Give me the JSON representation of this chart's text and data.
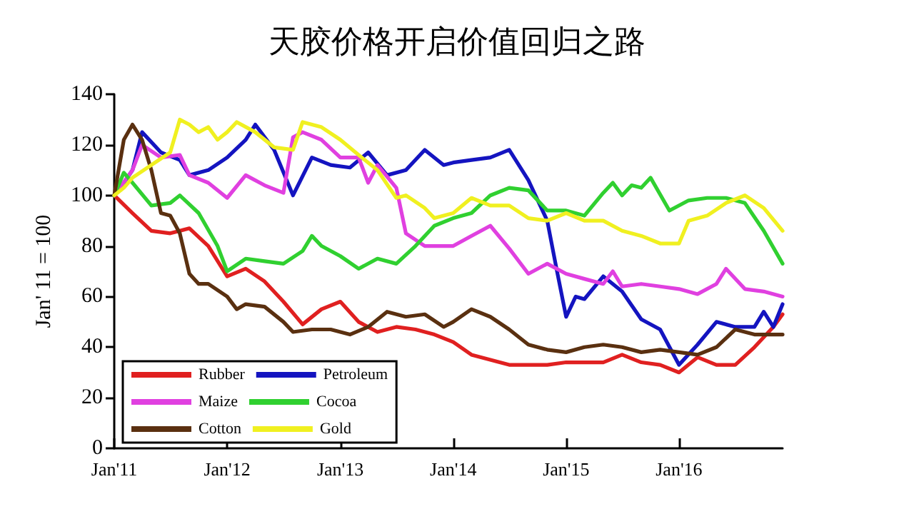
{
  "chart_data": {
    "type": "line",
    "title": "天胶价格开启价值回归之路",
    "ylabel": "Jan' 11 = 100",
    "xlim": [
      "2011-01",
      "2016-12"
    ],
    "xticks": [
      {
        "value": "2011-01",
        "label": "Jan'11"
      },
      {
        "value": "2012-01",
        "label": "Jan'12"
      },
      {
        "value": "2013-01",
        "label": "Jan'13"
      },
      {
        "value": "2014-01",
        "label": "Jan'14"
      },
      {
        "value": "2015-01",
        "label": "Jan'15"
      },
      {
        "value": "2016-01",
        "label": "Jan'16"
      }
    ],
    "ylim": [
      0,
      140
    ],
    "yticks": [
      0,
      20,
      40,
      60,
      80,
      100,
      120,
      140
    ],
    "grid": false,
    "legend": "bottom left",
    "marker": "none",
    "line_style": "solid",
    "series": [
      {
        "name": "Rubber",
        "color": "#e02020",
        "x": [
          "2011-01",
          "2011-03",
          "2011-05",
          "2011-07",
          "2011-09",
          "2011-11",
          "2012-01",
          "2012-03",
          "2012-05",
          "2012-07",
          "2012-09",
          "2012-11",
          "2013-01",
          "2013-03",
          "2013-05",
          "2013-07",
          "2013-09",
          "2013-11",
          "2014-01",
          "2014-03",
          "2014-05",
          "2014-07",
          "2014-09",
          "2014-11",
          "2015-01",
          "2015-03",
          "2015-05",
          "2015-07",
          "2015-09",
          "2015-11",
          "2016-01",
          "2016-03",
          "2016-05",
          "2016-07",
          "2016-09",
          "2016-11",
          "2016-12"
        ],
        "values": [
          100,
          93,
          86,
          85,
          87,
          80,
          68,
          71,
          66,
          58,
          49,
          55,
          58,
          50,
          46,
          48,
          47,
          45,
          42,
          37,
          35,
          33,
          33,
          33,
          34,
          34,
          34,
          37,
          34,
          33,
          30,
          36,
          33,
          33,
          40,
          48,
          53
        ]
      },
      {
        "name": "Petroleum",
        "color": "#1414c0",
        "x": [
          "2011-01",
          "2011-02",
          "2011-03",
          "2011-04",
          "2011-06",
          "2011-08",
          "2011-09",
          "2011-11",
          "2012-01",
          "2012-03",
          "2012-04",
          "2012-06",
          "2012-08",
          "2012-10",
          "2012-12",
          "2013-02",
          "2013-04",
          "2013-06",
          "2013-08",
          "2013-10",
          "2013-12",
          "2014-01",
          "2014-03",
          "2014-05",
          "2014-07",
          "2014-09",
          "2014-11",
          "2014-12",
          "2015-01",
          "2015-02",
          "2015-03",
          "2015-05",
          "2015-07",
          "2015-09",
          "2015-11",
          "2016-01",
          "2016-03",
          "2016-05",
          "2016-07",
          "2016-09",
          "2016-10",
          "2016-11",
          "2016-12"
        ],
        "values": [
          100,
          105,
          110,
          125,
          117,
          114,
          108,
          110,
          115,
          122,
          128,
          118,
          100,
          115,
          112,
          111,
          117,
          108,
          110,
          118,
          112,
          113,
          114,
          115,
          118,
          106,
          90,
          71,
          52,
          60,
          59,
          68,
          62,
          51,
          47,
          33,
          41,
          50,
          48,
          48,
          54,
          48,
          57
        ]
      },
      {
        "name": "Maize",
        "color": "#e040e0",
        "x": [
          "2011-01",
          "2011-03",
          "2011-04",
          "2011-06",
          "2011-08",
          "2011-09",
          "2011-11",
          "2012-01",
          "2012-03",
          "2012-05",
          "2012-07",
          "2012-08",
          "2012-09",
          "2012-11",
          "2013-01",
          "2013-03",
          "2013-04",
          "2013-05",
          "2013-07",
          "2013-08",
          "2013-10",
          "2013-12",
          "2014-01",
          "2014-03",
          "2014-05",
          "2014-07",
          "2014-09",
          "2014-11",
          "2015-01",
          "2015-03",
          "2015-05",
          "2015-06",
          "2015-07",
          "2015-09",
          "2015-11",
          "2016-01",
          "2016-03",
          "2016-05",
          "2016-06",
          "2016-08",
          "2016-10",
          "2016-12"
        ],
        "values": [
          100,
          110,
          120,
          115,
          116,
          108,
          105,
          99,
          108,
          104,
          101,
          123,
          125,
          122,
          115,
          115,
          105,
          112,
          103,
          85,
          80,
          80,
          80,
          84,
          88,
          79,
          69,
          73,
          69,
          67,
          65,
          70,
          64,
          65,
          64,
          63,
          61,
          65,
          71,
          63,
          62,
          60
        ]
      },
      {
        "name": "Cocoa",
        "color": "#30d030",
        "x": [
          "2011-01",
          "2011-02",
          "2011-03",
          "2011-05",
          "2011-07",
          "2011-08",
          "2011-10",
          "2011-12",
          "2012-01",
          "2012-03",
          "2012-05",
          "2012-07",
          "2012-09",
          "2012-10",
          "2012-11",
          "2013-01",
          "2013-03",
          "2013-05",
          "2013-07",
          "2013-09",
          "2013-11",
          "2014-01",
          "2014-03",
          "2014-05",
          "2014-07",
          "2014-09",
          "2014-11",
          "2015-01",
          "2015-03",
          "2015-05",
          "2015-06",
          "2015-07",
          "2015-08",
          "2015-09",
          "2015-10",
          "2015-12",
          "2016-02",
          "2016-04",
          "2016-06",
          "2016-08",
          "2016-10",
          "2016-12"
        ],
        "values": [
          100,
          109,
          105,
          96,
          97,
          100,
          93,
          80,
          70,
          75,
          74,
          73,
          78,
          84,
          80,
          76,
          71,
          75,
          73,
          80,
          88,
          91,
          93,
          100,
          103,
          102,
          94,
          94,
          92,
          101,
          105,
          100,
          104,
          103,
          107,
          94,
          98,
          99,
          99,
          97,
          86,
          73
        ]
      },
      {
        "name": "Cotton",
        "color": "#5a3010",
        "x": [
          "2011-01",
          "2011-02",
          "2011-03",
          "2011-04",
          "2011-05",
          "2011-06",
          "2011-07",
          "2011-08",
          "2011-09",
          "2011-10",
          "2011-11",
          "2012-01",
          "2012-02",
          "2012-03",
          "2012-05",
          "2012-07",
          "2012-08",
          "2012-10",
          "2012-12",
          "2013-02",
          "2013-04",
          "2013-06",
          "2013-08",
          "2013-10",
          "2013-12",
          "2014-01",
          "2014-03",
          "2014-05",
          "2014-07",
          "2014-09",
          "2014-11",
          "2015-01",
          "2015-03",
          "2015-05",
          "2015-07",
          "2015-09",
          "2015-11",
          "2016-01",
          "2016-03",
          "2016-05",
          "2016-07",
          "2016-09",
          "2016-12"
        ],
        "values": [
          100,
          122,
          128,
          122,
          110,
          93,
          92,
          85,
          69,
          65,
          65,
          60,
          55,
          57,
          56,
          50,
          46,
          47,
          47,
          45,
          48,
          54,
          52,
          53,
          48,
          50,
          55,
          52,
          47,
          41,
          39,
          38,
          40,
          41,
          40,
          38,
          39,
          38,
          37,
          40,
          47,
          45,
          45
        ]
      },
      {
        "name": "Gold",
        "color": "#f0f020",
        "x": [
          "2011-01",
          "2011-02",
          "2011-03",
          "2011-05",
          "2011-07",
          "2011-08",
          "2011-09",
          "2011-10",
          "2011-11",
          "2011-12",
          "2012-01",
          "2012-02",
          "2012-04",
          "2012-06",
          "2012-08",
          "2012-09",
          "2012-11",
          "2013-01",
          "2013-03",
          "2013-05",
          "2013-07",
          "2013-08",
          "2013-10",
          "2013-11",
          "2014-01",
          "2014-03",
          "2014-05",
          "2014-07",
          "2014-09",
          "2014-11",
          "2015-01",
          "2015-03",
          "2015-05",
          "2015-07",
          "2015-09",
          "2015-11",
          "2016-01",
          "2016-02",
          "2016-04",
          "2016-06",
          "2016-08",
          "2016-10",
          "2016-12"
        ],
        "values": [
          100,
          103,
          107,
          112,
          117,
          130,
          128,
          125,
          127,
          122,
          125,
          129,
          125,
          119,
          118,
          129,
          127,
          122,
          116,
          110,
          99,
          100,
          95,
          91,
          93,
          99,
          96,
          96,
          91,
          90,
          93,
          90,
          90,
          86,
          84,
          81,
          81,
          90,
          92,
          97,
          100,
          95,
          86
        ]
      }
    ]
  }
}
